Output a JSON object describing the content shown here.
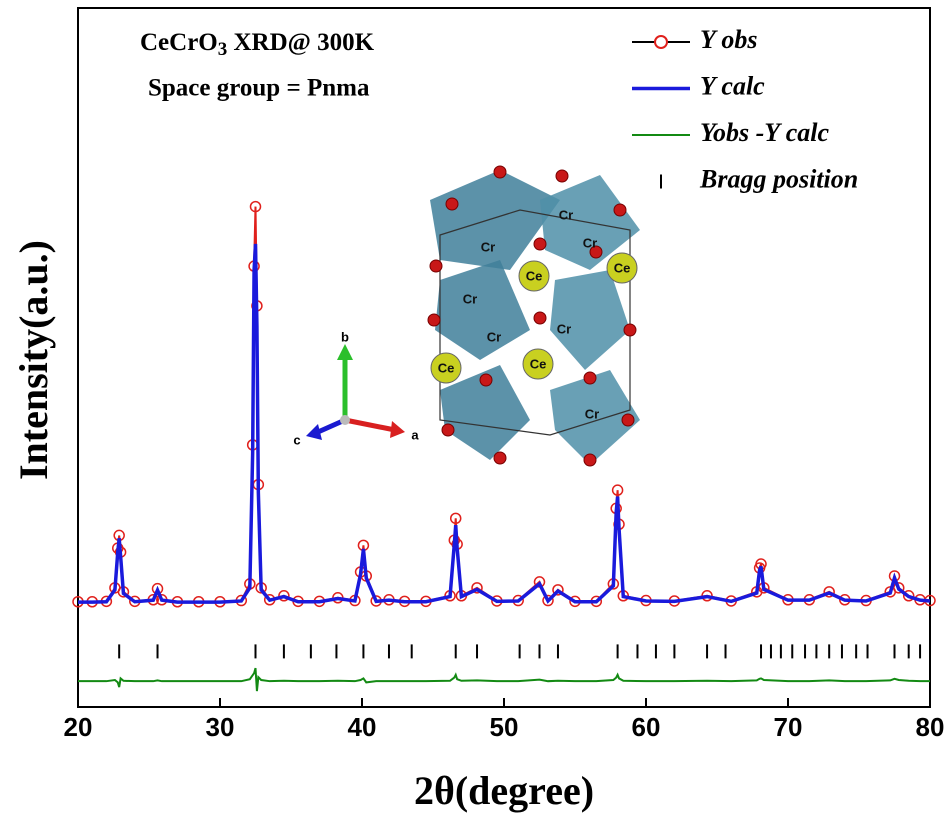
{
  "chart_data": {
    "type": "rietveld",
    "title": "CeCrO",
    "title_subscript": "3",
    "title_suffix": " XRD@ 300K",
    "subtitle": "Space group = Pnma",
    "x_label": "2θ(degree)",
    "y_label": "Intensity(a.u.)",
    "xlim": [
      20,
      80
    ],
    "xticks": [
      20,
      30,
      40,
      50,
      60,
      70,
      80
    ],
    "ylim": [
      -26,
      150
    ],
    "x": [
      20,
      21,
      22,
      22.6,
      22.8,
      22.9,
      23.0,
      23.2,
      24,
      25.3,
      25.6,
      25.9,
      27,
      28.5,
      30,
      31.5,
      32.1,
      32.3,
      32.4,
      32.5,
      32.6,
      32.7,
      32.9,
      33.5,
      34.5,
      35.5,
      37,
      38.3,
      39.5,
      39.9,
      40.1,
      40.3,
      41,
      41.9,
      43,
      44.5,
      46.2,
      46.5,
      46.6,
      46.7,
      47,
      48.1,
      49.5,
      51,
      52.5,
      53.1,
      53.8,
      55,
      56.5,
      57.7,
      57.9,
      58.0,
      58.1,
      58.4,
      60,
      62,
      64.3,
      66,
      67.8,
      68.0,
      68.1,
      68.3,
      70,
      71.5,
      72.9,
      74,
      75.5,
      77.2,
      77.5,
      77.8,
      78.5,
      79.3,
      80
    ],
    "series": [
      {
        "name": "Y obs",
        "color": "#e0201c",
        "style": "circles",
        "values": [
          0.5,
          0.5,
          0.6,
          4,
          14,
          17.2,
          13,
          3,
          0.6,
          1,
          3.8,
          1,
          0.5,
          0.5,
          0.5,
          0.8,
          5,
          40,
          85,
          100,
          75,
          30,
          4,
          1,
          2,
          0.6,
          0.6,
          1.5,
          0.8,
          8,
          14.7,
          7,
          0.7,
          1,
          0.6,
          0.6,
          2,
          16,
          21.5,
          15,
          2,
          4,
          0.7,
          0.8,
          5.5,
          0.8,
          3.5,
          0.6,
          0.6,
          5,
          24,
          28.6,
          20,
          2,
          0.8,
          0.7,
          2,
          0.7,
          3,
          9,
          10,
          4,
          1,
          1,
          3,
          1,
          0.8,
          3,
          7,
          4,
          2,
          1,
          0.8
        ]
      },
      {
        "name": "Y calc",
        "color": "#1a1adc",
        "style": "line",
        "values": [
          0.4,
          0.4,
          0.5,
          3.5,
          13,
          16.5,
          12,
          2.6,
          0.5,
          0.9,
          3.4,
          0.9,
          0.4,
          0.4,
          0.4,
          0.7,
          4,
          38,
          84,
          90.6,
          70,
          28,
          3.5,
          0.9,
          1.8,
          0.5,
          0.5,
          1.3,
          0.7,
          7.5,
          13.8,
          6.5,
          0.6,
          0.9,
          0.5,
          0.5,
          1.8,
          15,
          19.8,
          14,
          1.8,
          3.6,
          0.6,
          0.7,
          5,
          0.7,
          3.2,
          0.5,
          0.5,
          4.5,
          23,
          27,
          19,
          1.8,
          0.7,
          0.6,
          1.8,
          0.6,
          2.7,
          8.5,
          9.4,
          3.6,
          0.9,
          0.9,
          2.7,
          0.9,
          0.7,
          2.7,
          6.5,
          3.7,
          1.8,
          0.9,
          0.7
        ]
      },
      {
        "name": "Yobs -Y calc",
        "color": "#138a13",
        "style": "line",
        "values": [
          -19.5,
          -19.5,
          -19.5,
          -19.2,
          -19.8,
          -21,
          -18.8,
          -19.4,
          -19.5,
          -19.5,
          -19.3,
          -19.5,
          -19.5,
          -19.5,
          -19.5,
          -19.5,
          -19,
          -18,
          -17.5,
          -16.2,
          -22,
          -18.5,
          -19.2,
          -19.5,
          -19.4,
          -19.5,
          -19.5,
          -19.4,
          -19.5,
          -19.2,
          -18.8,
          -19.8,
          -19.5,
          -19.5,
          -19.5,
          -19.5,
          -19.4,
          -18.6,
          -17.9,
          -19,
          -19.4,
          -19.3,
          -19.5,
          -19.5,
          -19.1,
          -19.5,
          -19.4,
          -19.5,
          -19.5,
          -19.2,
          -18.6,
          -17.9,
          -18.8,
          -19.4,
          -19.5,
          -19.5,
          -19.4,
          -19.5,
          -19.3,
          -18.9,
          -18.8,
          -19.2,
          -19.5,
          -19.5,
          -19.3,
          -19.5,
          -19.5,
          -19.3,
          -18.9,
          -19.2,
          -19.4,
          -19.5,
          -19.5
        ]
      },
      {
        "name": "Bragg position",
        "color": "#000000",
        "style": "ticks",
        "level": -12,
        "x": [
          22.9,
          25.6,
          32.5,
          34.5,
          36.4,
          38.2,
          40.1,
          41.9,
          43.5,
          46.6,
          48.1,
          51.1,
          52.5,
          53.8,
          58.0,
          59.4,
          60.7,
          62.0,
          64.3,
          65.6,
          68.1,
          68.8,
          69.5,
          70.3,
          71.2,
          72.0,
          72.9,
          73.8,
          74.8,
          75.6,
          77.5,
          78.5,
          79.3,
          80.0
        ]
      }
    ],
    "inset_axes": [
      "a",
      "b",
      "c"
    ],
    "inset_atoms": [
      "Cr",
      "Cr",
      "Cr",
      "Cr",
      "Ce",
      "Ce",
      "Ce",
      "Ce",
      "Cr",
      "Cr",
      "Cr"
    ]
  }
}
